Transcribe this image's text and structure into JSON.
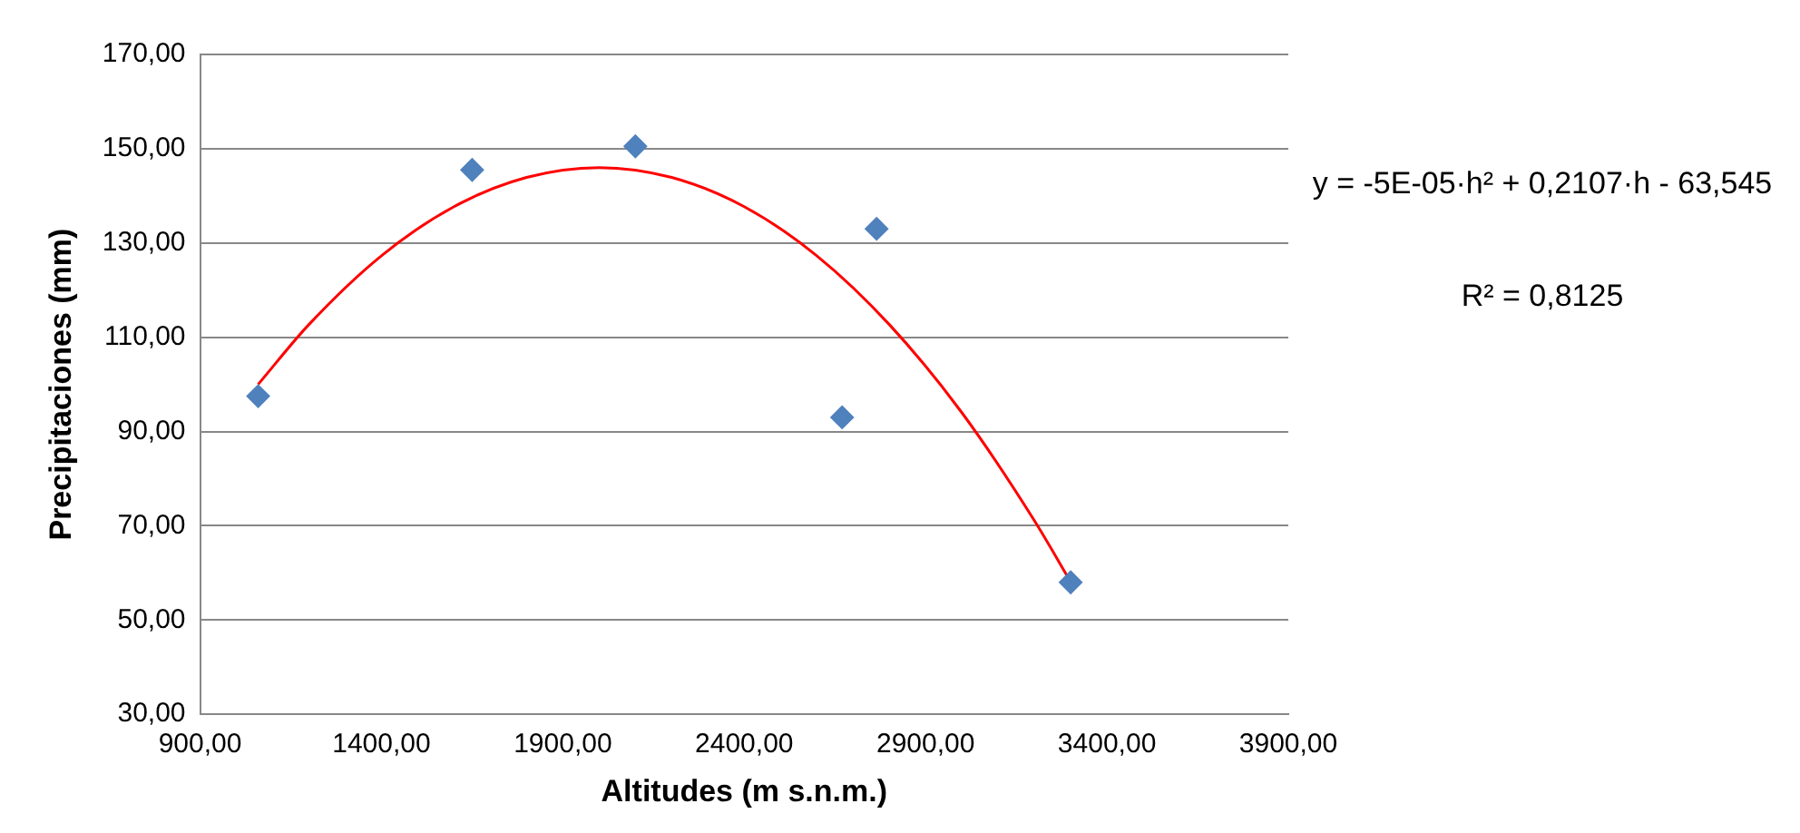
{
  "chart_data": {
    "type": "scatter",
    "xlabel": "Altitudes (m s.n.m.)",
    "ylabel": "Precipitaciones (mm)",
    "xlim": [
      900,
      3900
    ],
    "xticks": [
      {
        "value": 900,
        "label": "900,00"
      },
      {
        "value": 1400,
        "label": "1400,00"
      },
      {
        "value": 1900,
        "label": "1900,00"
      },
      {
        "value": 2400,
        "label": "2400,00"
      },
      {
        "value": 2900,
        "label": "2900,00"
      },
      {
        "value": 3400,
        "label": "3400,00"
      },
      {
        "value": 3900,
        "label": "3900,00"
      }
    ],
    "ylim": [
      30,
      170
    ],
    "yticks": [
      {
        "value": 30,
        "label": "30,00"
      },
      {
        "value": 50,
        "label": "50,00"
      },
      {
        "value": 70,
        "label": "70,00"
      },
      {
        "value": 90,
        "label": "90,00"
      },
      {
        "value": 110,
        "label": "110,00"
      },
      {
        "value": 130,
        "label": "130,00"
      },
      {
        "value": 150,
        "label": "150,00"
      },
      {
        "value": 170,
        "label": "170,00"
      }
    ],
    "grid": "y",
    "series": [
      {
        "color": "#4f81bd",
        "marker": "diamond",
        "x": [
          1060,
          1650,
          2100,
          2670,
          2765,
          3300
        ],
        "values": [
          97.5,
          145.5,
          150.5,
          93,
          133,
          58
        ]
      },
      {
        "type": "line",
        "color": "#ff0000",
        "line_style": "solid",
        "x": [
          1060,
          1200,
          1400,
          1600,
          1800,
          2000,
          2200,
          2400,
          2600,
          2800,
          3000,
          3200,
          3300
        ],
        "values": [
          100,
          112.7,
          127.3,
          137.7,
          143.9,
          146,
          143.9,
          137.7,
          127.3,
          112.7,
          94,
          71.1,
          58.1
        ]
      }
    ],
    "annotations": [
      "y = -5E-05·h² + 0,2107·h - 63,545",
      "R² = 0,8125"
    ]
  }
}
